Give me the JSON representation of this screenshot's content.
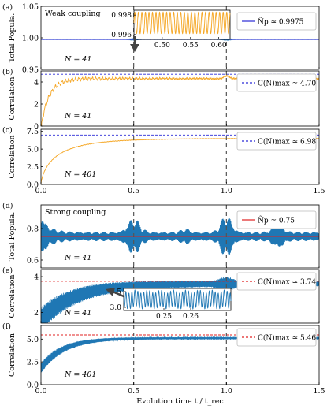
{
  "global": {
    "xlabel": "Evolution time t / t_rec",
    "x_ticks": [
      0.0,
      0.5,
      1.0,
      1.5
    ],
    "x_tick_labels": [
      "0.0",
      "0.5",
      "1.0",
      "1.5"
    ],
    "dashed_verticals": [
      0.5,
      1.0
    ],
    "colors": {
      "orange": "#f5a623",
      "blue": "#1f77b4",
      "ref_blue": "#2a2ad6",
      "ref_red": "#e02020",
      "dash": "#555555"
    }
  },
  "chart_data": [
    {
      "panel": "(a)",
      "type": "line",
      "ylabel": "Total Popula.",
      "ylim": [
        0.95,
        1.05
      ],
      "y_ticks": [
        0.95,
        1.0,
        1.05
      ],
      "y_tick_labels": [
        "0.95",
        "1.00",
        "1.05"
      ],
      "annotation": "Weak coupling",
      "n_label": "N = 41",
      "reference": {
        "value": 0.9975,
        "label": "Ñp ≃ 0.9975"
      },
      "series": [
        {
          "name": "Ñp",
          "signal": "population_weak",
          "mean": 0.9975
        }
      ],
      "inset": {
        "xlim": [
          0.45,
          0.62
        ],
        "ylim": [
          0.9955,
          0.9985
        ],
        "x_ticks": [
          0.5,
          0.55,
          0.6
        ],
        "x_tick_labels": [
          "0.50",
          "0.55",
          "0.60"
        ],
        "y_ticks": [
          0.996,
          0.998
        ],
        "y_tick_labels": [
          "0.996",
          "0.998"
        ]
      }
    },
    {
      "panel": "(b)",
      "type": "line",
      "ylabel": "Correlation",
      "ylim": [
        0,
        5
      ],
      "y_ticks": [
        0,
        2,
        4
      ],
      "y_tick_labels": [
        "0",
        "2",
        "4"
      ],
      "n_label": "N = 41",
      "reference": {
        "value": 4.7,
        "label": "C(N)max ≃ 4.70"
      },
      "series": [
        {
          "name": "correlation",
          "signal": "correlation_weak_41",
          "plateau": 4.3
        }
      ]
    },
    {
      "panel": "(c)",
      "type": "line",
      "ylabel": "Correlation",
      "ylim": [
        0,
        7.8
      ],
      "y_ticks": [
        0,
        2.5,
        5.0,
        7.5
      ],
      "y_tick_labels": [
        "0.0",
        "2.5",
        "5.0",
        "7.5"
      ],
      "n_label": "N = 401",
      "reference": {
        "value": 6.98,
        "label": "C(N)max ≃ 6.98"
      },
      "series": [
        {
          "name": "correlation",
          "signal": "correlation_weak_401",
          "plateau": 6.5
        }
      ]
    },
    {
      "panel": "(d)",
      "type": "line",
      "ylabel": "Total Popula.",
      "ylim": [
        0.55,
        0.95
      ],
      "y_ticks": [
        0.6,
        0.8
      ],
      "y_tick_labels": [
        "0.6",
        "0.8"
      ],
      "annotation": "Strong coupling",
      "n_label": "N = 41",
      "reference": {
        "value": 0.75,
        "label": "Ñp ≃ 0.75"
      },
      "series": [
        {
          "name": "Ñp",
          "signal": "population_strong",
          "mean": 0.75
        }
      ]
    },
    {
      "panel": "(e)",
      "type": "line",
      "ylabel": "Correlation",
      "ylim": [
        1.4,
        4.4
      ],
      "y_ticks": [
        2,
        4
      ],
      "y_tick_labels": [
        "2",
        "4"
      ],
      "n_label": "N = 41",
      "reference": {
        "value": 3.74,
        "label": "C(N)max ≃ 3.74"
      },
      "series": [
        {
          "name": "correlation",
          "signal": "correlation_strong_41",
          "plateau": 3.6
        }
      ],
      "inset": {
        "xlim": [
          0.235,
          0.275
        ],
        "ylim": [
          2.9,
          3.6
        ],
        "x_ticks": [
          0.25,
          0.26
        ],
        "x_tick_labels": [
          "0.25",
          "0.26"
        ],
        "y_ticks": [
          3.0,
          3.5
        ],
        "y_tick_labels": [
          "3.0",
          "3.5"
        ]
      }
    },
    {
      "panel": "(f)",
      "type": "line",
      "ylabel": "Correlation",
      "ylim": [
        0,
        6.5
      ],
      "y_ticks": [
        0.0,
        2.5,
        5.0
      ],
      "y_tick_labels": [
        "0.0",
        "2.5",
        "5.0"
      ],
      "n_label": "N = 401",
      "reference": {
        "value": 5.46,
        "label": "C(N)max ≃ 5.46"
      },
      "series": [
        {
          "name": "correlation",
          "signal": "correlation_strong_401",
          "plateau": 5.1
        }
      ]
    }
  ]
}
